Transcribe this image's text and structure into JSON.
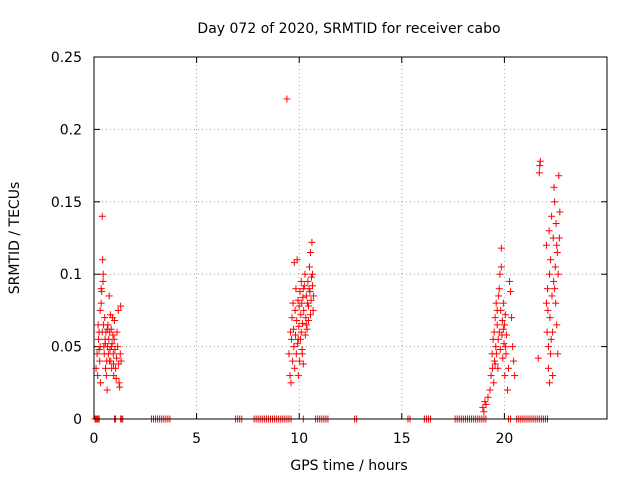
{
  "chart_data": {
    "type": "scatter",
    "title": "Day 072 of 2020, SRMTID for receiver cabo",
    "xlabel": "GPS time / hours",
    "ylabel": "SRMTID / TECUs",
    "xlim": [
      0,
      25
    ],
    "ylim": [
      0,
      0.25
    ],
    "xticks": [
      0,
      5,
      10,
      15,
      20
    ],
    "yticks": [
      0,
      0.05,
      0.1,
      0.15,
      0.2,
      0.25
    ],
    "ytick_labels": [
      "0",
      "0.05",
      "0.1",
      "0.15",
      "0.2",
      "0.25"
    ],
    "grid": true,
    "marker": "+",
    "color": "#ff0000",
    "series": [
      {
        "name": "SRMTID",
        "points": [
          [
            0.1,
            0.035
          ],
          [
            0.15,
            0.045
          ],
          [
            0.18,
            0.03
          ],
          [
            0.22,
            0.055
          ],
          [
            0.25,
            0.06
          ],
          [
            0.28,
            0.04
          ],
          [
            0.3,
            0.05
          ],
          [
            0.32,
            0.025
          ],
          [
            0.35,
            0.08
          ],
          [
            0.38,
            0.088
          ],
          [
            0.4,
            0.14
          ],
          [
            0.42,
            0.11
          ],
          [
            0.44,
            0.095
          ],
          [
            0.46,
            0.065
          ],
          [
            0.48,
            0.05
          ],
          [
            0.5,
            0.045
          ],
          [
            0.52,
            0.07
          ],
          [
            0.54,
            0.055
          ],
          [
            0.56,
            0.035
          ],
          [
            0.58,
            0.06
          ],
          [
            0.6,
            0.03
          ],
          [
            0.62,
            0.04
          ],
          [
            0.64,
            0.02
          ],
          [
            0.66,
            0.05
          ],
          [
            0.68,
            0.065
          ],
          [
            0.7,
            0.045
          ],
          [
            0.72,
            0.055
          ],
          [
            0.74,
            0.085
          ],
          [
            0.76,
            0.06
          ],
          [
            0.78,
            0.048
          ],
          [
            0.8,
            0.072
          ],
          [
            0.82,
            0.04
          ],
          [
            0.84,
            0.062
          ],
          [
            0.86,
            0.035
          ],
          [
            0.88,
            0.052
          ],
          [
            0.9,
            0.07
          ],
          [
            0.92,
            0.058
          ],
          [
            0.94,
            0.045
          ],
          [
            0.96,
            0.03
          ],
          [
            0.98,
            0.055
          ],
          [
            1.0,
            0.068
          ],
          [
            1.02,
            0.048
          ],
          [
            1.05,
            0.035
          ],
          [
            1.08,
            0.028
          ],
          [
            1.1,
            0.042
          ],
          [
            1.12,
            0.06
          ],
          [
            1.15,
            0.05
          ],
          [
            1.18,
            0.075
          ],
          [
            1.2,
            0.038
          ],
          [
            1.22,
            0.025
          ],
          [
            1.25,
            0.022
          ],
          [
            1.28,
            0.045
          ],
          [
            1.3,
            0.078
          ],
          [
            1.32,
            0.04
          ],
          [
            0.45,
            0.1
          ],
          [
            0.35,
            0.09
          ],
          [
            0.3,
            0.075
          ],
          [
            0.4,
            0.06
          ],
          [
            0.55,
            0.052
          ],
          [
            0.65,
            0.062
          ],
          [
            0.75,
            0.04
          ],
          [
            0.85,
            0.05
          ],
          [
            0.2,
            0.065
          ],
          [
            0.25,
            0.048
          ],
          [
            0.95,
            0.038
          ],
          [
            9.4,
            0.221
          ],
          [
            9.5,
            0.045
          ],
          [
            9.55,
            0.03
          ],
          [
            9.58,
            0.06
          ],
          [
            9.6,
            0.025
          ],
          [
            9.62,
            0.055
          ],
          [
            9.65,
            0.07
          ],
          [
            9.68,
            0.04
          ],
          [
            9.7,
            0.08
          ],
          [
            9.72,
            0.062
          ],
          [
            9.74,
            0.05
          ],
          [
            9.76,
            0.108
          ],
          [
            9.78,
            0.035
          ],
          [
            9.8,
            0.075
          ],
          [
            9.82,
            0.058
          ],
          [
            9.84,
            0.09
          ],
          [
            9.86,
            0.045
          ],
          [
            9.88,
            0.068
          ],
          [
            9.9,
            0.11
          ],
          [
            9.92,
            0.052
          ],
          [
            9.94,
            0.082
          ],
          [
            9.96,
            0.03
          ],
          [
            9.98,
            0.064
          ],
          [
            10.0,
            0.078
          ],
          [
            10.02,
            0.04
          ],
          [
            10.04,
            0.088
          ],
          [
            10.06,
            0.055
          ],
          [
            10.08,
            0.072
          ],
          [
            10.1,
            0.06
          ],
          [
            10.12,
            0.08
          ],
          [
            10.14,
            0.048
          ],
          [
            10.16,
            0.066
          ],
          [
            10.18,
            0.084
          ],
          [
            10.2,
            0.038
          ],
          [
            10.22,
            0.075
          ],
          [
            10.25,
            0.092
          ],
          [
            10.28,
            0.1
          ],
          [
            10.3,
            0.058
          ],
          [
            10.32,
            0.07
          ],
          [
            10.35,
            0.085
          ],
          [
            10.38,
            0.062
          ],
          [
            10.4,
            0.08
          ],
          [
            10.42,
            0.095
          ],
          [
            10.45,
            0.078
          ],
          [
            10.48,
            0.09
          ],
          [
            10.5,
            0.105
          ],
          [
            10.52,
            0.088
          ],
          [
            10.55,
            0.115
          ],
          [
            10.58,
            0.082
          ],
          [
            10.6,
            0.098
          ],
          [
            10.62,
            0.122
          ],
          [
            10.65,
            0.092
          ],
          [
            10.68,
            0.075
          ],
          [
            10.7,
            0.085
          ],
          [
            10.35,
            0.065
          ],
          [
            10.45,
            0.068
          ],
          [
            10.55,
            0.072
          ],
          [
            10.2,
            0.09
          ],
          [
            10.1,
            0.095
          ],
          [
            9.95,
            0.055
          ],
          [
            10.65,
            0.1
          ],
          [
            10.15,
            0.045
          ],
          [
            18.95,
            0.008
          ],
          [
            19.0,
            0.005
          ],
          [
            19.05,
            0.012
          ],
          [
            19.1,
            0.01
          ],
          [
            19.2,
            0.015
          ],
          [
            19.3,
            0.02
          ],
          [
            19.35,
            0.03
          ],
          [
            19.4,
            0.045
          ],
          [
            19.42,
            0.035
          ],
          [
            19.45,
            0.055
          ],
          [
            19.48,
            0.025
          ],
          [
            19.5,
            0.06
          ],
          [
            19.52,
            0.04
          ],
          [
            19.55,
            0.07
          ],
          [
            19.58,
            0.05
          ],
          [
            19.6,
            0.08
          ],
          [
            19.62,
            0.045
          ],
          [
            19.65,
            0.065
          ],
          [
            19.68,
            0.035
          ],
          [
            19.7,
            0.055
          ],
          [
            19.72,
            0.085
          ],
          [
            19.75,
            0.06
          ],
          [
            19.78,
            0.1
          ],
          [
            19.8,
            0.048
          ],
          [
            19.82,
            0.075
          ],
          [
            19.85,
            0.118
          ],
          [
            19.88,
            0.058
          ],
          [
            19.9,
            0.068
          ],
          [
            19.92,
            0.042
          ],
          [
            19.95,
            0.08
          ],
          [
            19.98,
            0.052
          ],
          [
            20.0,
            0.065
          ],
          [
            20.02,
            0.03
          ],
          [
            20.05,
            0.072
          ],
          [
            20.08,
            0.045
          ],
          [
            20.1,
            0.058
          ],
          [
            20.15,
            0.02
          ],
          [
            20.2,
            0.035
          ],
          [
            20.25,
            0.095
          ],
          [
            20.3,
            0.088
          ],
          [
            20.35,
            0.07
          ],
          [
            20.4,
            0.05
          ],
          [
            20.45,
            0.04
          ],
          [
            20.5,
            0.03
          ],
          [
            19.75,
            0.09
          ],
          [
            19.85,
            0.105
          ],
          [
            19.65,
            0.075
          ],
          [
            19.55,
            0.038
          ],
          [
            19.95,
            0.062
          ],
          [
            20.05,
            0.05
          ],
          [
            21.65,
            0.042
          ],
          [
            21.7,
            0.17
          ],
          [
            21.72,
            0.175
          ],
          [
            21.75,
            0.178
          ],
          [
            22.05,
            0.12
          ],
          [
            22.08,
            0.06
          ],
          [
            22.1,
            0.09
          ],
          [
            22.12,
            0.075
          ],
          [
            22.15,
            0.05
          ],
          [
            22.18,
            0.13
          ],
          [
            22.2,
            0.1
          ],
          [
            22.22,
            0.07
          ],
          [
            22.25,
            0.11
          ],
          [
            22.28,
            0.055
          ],
          [
            22.3,
            0.14
          ],
          [
            22.32,
            0.085
          ],
          [
            22.35,
            0.03
          ],
          [
            22.38,
            0.125
          ],
          [
            22.4,
            0.095
          ],
          [
            22.42,
            0.16
          ],
          [
            22.45,
            0.15
          ],
          [
            22.48,
            0.105
          ],
          [
            22.5,
            0.08
          ],
          [
            22.52,
            0.135
          ],
          [
            22.55,
            0.065
          ],
          [
            22.58,
            0.115
          ],
          [
            22.6,
            0.045
          ],
          [
            22.62,
            0.1
          ],
          [
            22.65,
            0.168
          ],
          [
            22.68,
            0.125
          ],
          [
            22.7,
            0.143
          ],
          [
            22.15,
            0.035
          ],
          [
            22.25,
            0.045
          ],
          [
            22.35,
            0.06
          ],
          [
            22.45,
            0.09
          ],
          [
            22.55,
            0.12
          ],
          [
            22.05,
            0.08
          ],
          [
            22.2,
            0.025
          ]
        ],
        "zero_points_x": [
          0.05,
          0.1,
          0.15,
          0.2,
          0.25,
          1.0,
          1.05,
          1.3,
          1.35,
          1.4,
          2.8,
          2.9,
          3.0,
          3.1,
          3.2,
          3.3,
          3.4,
          3.5,
          3.6,
          3.7,
          6.9,
          7.0,
          7.1,
          7.2,
          7.8,
          7.9,
          8.0,
          8.1,
          8.2,
          8.3,
          8.4,
          8.5,
          8.6,
          8.7,
          8.8,
          8.9,
          9.0,
          9.1,
          9.2,
          9.3,
          9.4,
          9.5,
          9.6,
          10.2,
          10.8,
          10.9,
          11.0,
          11.1,
          11.2,
          11.3,
          11.4,
          12.7,
          12.8,
          15.3,
          15.4,
          16.1,
          16.2,
          16.3,
          16.4,
          17.6,
          17.7,
          17.8,
          17.9,
          18.0,
          18.1,
          18.2,
          18.3,
          18.4,
          18.5,
          18.6,
          18.7,
          18.8,
          18.9,
          19.0,
          19.1,
          20.2,
          20.3,
          20.6,
          20.7,
          20.8,
          20.9,
          21.0,
          21.1,
          21.2,
          21.3,
          21.4,
          21.5,
          21.6,
          21.7,
          21.8,
          21.9,
          22.0,
          22.1
        ]
      }
    ]
  }
}
